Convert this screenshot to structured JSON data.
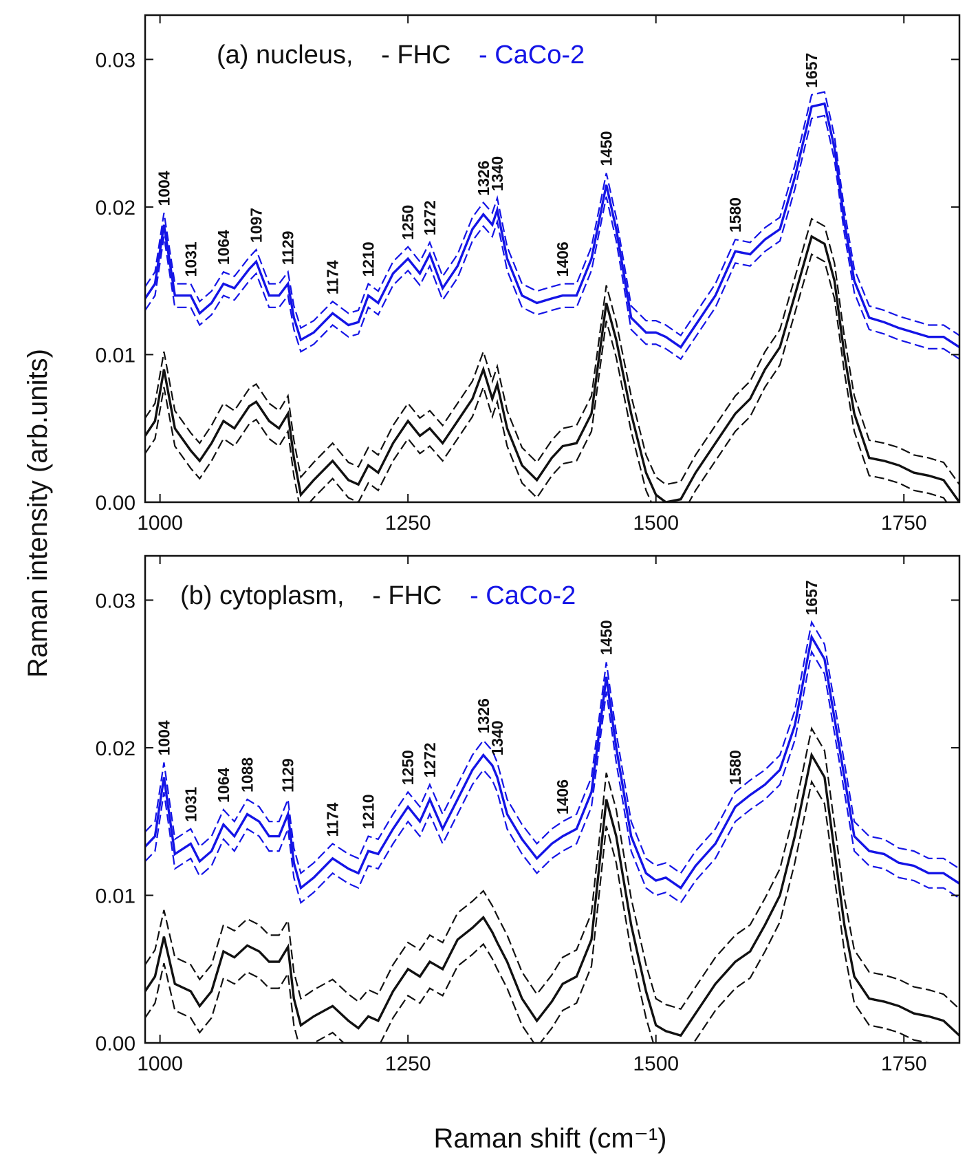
{
  "colors": {
    "FHC": "#111111",
    "CaCo-2": "#1414e6",
    "frame": "#111111"
  },
  "chart_data": [
    {
      "type": "line",
      "id": "panel-a",
      "annotation": {
        "text": "(a) nucleus,",
        "entries": [
          {
            "text": "- FHC",
            "series": "FHC"
          },
          {
            "text": "- CaCo-2",
            "series": "CaCo-2"
          }
        ]
      },
      "xlabel": "",
      "ylabel": "Raman intensity (arb.units)",
      "xlim": [
        985,
        1806
      ],
      "ylim": [
        0,
        0.033
      ],
      "xticks": [
        "1000",
        "1250",
        "1500",
        "1750"
      ],
      "yticks": [
        "0.00",
        "0.01",
        "0.02",
        "0.03"
      ],
      "peak_labels": [
        "1004",
        "1031",
        "1064",
        "1097",
        "1129",
        "1174",
        "1210",
        "1250",
        "1272",
        "1326",
        "1340",
        "1406",
        "1450",
        "1580",
        "1657"
      ],
      "series": [
        {
          "name": "CaCo-2",
          "band": 0.0008,
          "x": [
            985,
            995,
            1004,
            1015,
            1031,
            1040,
            1052,
            1064,
            1075,
            1090,
            1097,
            1110,
            1120,
            1129,
            1135,
            1142,
            1155,
            1174,
            1190,
            1200,
            1210,
            1220,
            1235,
            1250,
            1262,
            1272,
            1285,
            1300,
            1315,
            1326,
            1335,
            1340,
            1350,
            1365,
            1380,
            1395,
            1406,
            1420,
            1435,
            1450,
            1460,
            1475,
            1490,
            1500,
            1510,
            1525,
            1540,
            1560,
            1580,
            1595,
            1610,
            1625,
            1640,
            1657,
            1670,
            1680,
            1690,
            1700,
            1715,
            1730,
            1745,
            1760,
            1775,
            1790,
            1806
          ],
          "y": [
            0.0138,
            0.0148,
            0.0188,
            0.014,
            0.014,
            0.0128,
            0.0135,
            0.0148,
            0.0145,
            0.0158,
            0.0163,
            0.014,
            0.014,
            0.0148,
            0.0125,
            0.011,
            0.0115,
            0.0128,
            0.012,
            0.0122,
            0.014,
            0.0135,
            0.0155,
            0.0165,
            0.0155,
            0.0168,
            0.0145,
            0.016,
            0.0185,
            0.0195,
            0.0188,
            0.0198,
            0.0165,
            0.014,
            0.0135,
            0.0138,
            0.014,
            0.014,
            0.0165,
            0.0215,
            0.0185,
            0.0125,
            0.0115,
            0.0115,
            0.0112,
            0.0105,
            0.012,
            0.014,
            0.017,
            0.0168,
            0.0178,
            0.0185,
            0.022,
            0.0268,
            0.027,
            0.024,
            0.019,
            0.015,
            0.0125,
            0.0122,
            0.0118,
            0.0115,
            0.0112,
            0.0112,
            0.0105
          ]
        },
        {
          "name": "FHC",
          "band": 0.0012,
          "x": [
            985,
            995,
            1004,
            1015,
            1031,
            1040,
            1052,
            1064,
            1075,
            1090,
            1097,
            1110,
            1120,
            1129,
            1135,
            1142,
            1155,
            1174,
            1190,
            1200,
            1210,
            1220,
            1235,
            1250,
            1262,
            1272,
            1285,
            1300,
            1315,
            1326,
            1335,
            1340,
            1350,
            1365,
            1380,
            1395,
            1406,
            1420,
            1435,
            1450,
            1460,
            1475,
            1490,
            1500,
            1510,
            1525,
            1540,
            1560,
            1580,
            1595,
            1610,
            1625,
            1640,
            1657,
            1670,
            1680,
            1690,
            1700,
            1715,
            1730,
            1745,
            1760,
            1775,
            1790,
            1806
          ],
          "y": [
            0.0045,
            0.0055,
            0.009,
            0.005,
            0.0035,
            0.0028,
            0.004,
            0.0055,
            0.005,
            0.0065,
            0.0068,
            0.0055,
            0.005,
            0.006,
            0.003,
            0.0005,
            0.0015,
            0.0028,
            0.0015,
            0.0012,
            0.0025,
            0.002,
            0.004,
            0.0055,
            0.0045,
            0.005,
            0.004,
            0.0055,
            0.007,
            0.009,
            0.007,
            0.008,
            0.005,
            0.0025,
            0.0015,
            0.003,
            0.0038,
            0.004,
            0.006,
            0.0135,
            0.011,
            0.006,
            0.002,
            0.0005,
            0.0,
            0.0002,
            0.002,
            0.004,
            0.006,
            0.007,
            0.009,
            0.0105,
            0.014,
            0.018,
            0.0175,
            0.015,
            0.01,
            0.006,
            0.003,
            0.0028,
            0.0025,
            0.002,
            0.0018,
            0.0015,
            0.0
          ]
        }
      ]
    },
    {
      "type": "line",
      "id": "panel-b",
      "annotation": {
        "text": "(b) cytoplasm,",
        "entries": [
          {
            "text": "- FHC",
            "series": "FHC"
          },
          {
            "text": "- CaCo-2",
            "series": "CaCo-2"
          }
        ]
      },
      "xlabel": "Raman shift (cm⁻¹)",
      "ylabel": "",
      "xlim": [
        985,
        1806
      ],
      "ylim": [
        0,
        0.033
      ],
      "xticks": [
        "1000",
        "1250",
        "1500",
        "1750"
      ],
      "yticks": [
        "0.00",
        "0.01",
        "0.02",
        "0.03"
      ],
      "peak_labels": [
        "1004",
        "1031",
        "1064",
        "1088",
        "1129",
        "1174",
        "1210",
        "1250",
        "1272",
        "1326",
        "1340",
        "1406",
        "1450",
        "1580",
        "1657"
      ],
      "series": [
        {
          "name": "CaCo-2",
          "band": 0.001,
          "x": [
            985,
            995,
            1004,
            1015,
            1031,
            1040,
            1052,
            1064,
            1075,
            1088,
            1100,
            1110,
            1120,
            1129,
            1135,
            1142,
            1155,
            1174,
            1190,
            1200,
            1210,
            1220,
            1235,
            1250,
            1262,
            1272,
            1285,
            1300,
            1315,
            1326,
            1335,
            1340,
            1350,
            1365,
            1380,
            1395,
            1406,
            1420,
            1435,
            1450,
            1460,
            1475,
            1490,
            1500,
            1510,
            1525,
            1540,
            1560,
            1580,
            1595,
            1610,
            1625,
            1640,
            1657,
            1670,
            1680,
            1690,
            1700,
            1715,
            1730,
            1745,
            1760,
            1775,
            1790,
            1806
          ],
          "y": [
            0.0133,
            0.014,
            0.018,
            0.0128,
            0.0135,
            0.0123,
            0.013,
            0.0148,
            0.014,
            0.0155,
            0.015,
            0.014,
            0.014,
            0.0155,
            0.0122,
            0.0105,
            0.0112,
            0.0125,
            0.0118,
            0.0115,
            0.013,
            0.0128,
            0.0145,
            0.016,
            0.015,
            0.0165,
            0.0145,
            0.0165,
            0.0185,
            0.0195,
            0.0188,
            0.018,
            0.0155,
            0.0138,
            0.0125,
            0.0135,
            0.014,
            0.0145,
            0.017,
            0.0248,
            0.02,
            0.014,
            0.0115,
            0.011,
            0.0112,
            0.0105,
            0.012,
            0.0135,
            0.016,
            0.0168,
            0.0175,
            0.0185,
            0.0215,
            0.0275,
            0.026,
            0.022,
            0.018,
            0.014,
            0.013,
            0.0128,
            0.0122,
            0.012,
            0.0115,
            0.0115,
            0.0108
          ]
        },
        {
          "name": "FHC",
          "band": 0.0018,
          "x": [
            985,
            995,
            1004,
            1015,
            1031,
            1040,
            1052,
            1064,
            1075,
            1088,
            1100,
            1110,
            1120,
            1129,
            1135,
            1142,
            1155,
            1174,
            1190,
            1200,
            1210,
            1220,
            1235,
            1250,
            1262,
            1272,
            1285,
            1300,
            1315,
            1326,
            1335,
            1340,
            1350,
            1365,
            1380,
            1395,
            1406,
            1420,
            1435,
            1450,
            1460,
            1475,
            1490,
            1500,
            1510,
            1525,
            1540,
            1560,
            1580,
            1595,
            1610,
            1625,
            1640,
            1657,
            1670,
            1680,
            1690,
            1700,
            1715,
            1730,
            1745,
            1760,
            1775,
            1790,
            1806
          ],
          "y": [
            0.0035,
            0.0045,
            0.0072,
            0.004,
            0.0035,
            0.0025,
            0.0035,
            0.0062,
            0.0058,
            0.0066,
            0.0062,
            0.0055,
            0.0055,
            0.0065,
            0.003,
            0.0012,
            0.0018,
            0.0025,
            0.0015,
            0.001,
            0.0018,
            0.0015,
            0.0035,
            0.005,
            0.0045,
            0.0055,
            0.005,
            0.007,
            0.0078,
            0.0085,
            0.0075,
            0.0068,
            0.0055,
            0.003,
            0.0015,
            0.0028,
            0.004,
            0.0045,
            0.007,
            0.0165,
            0.014,
            0.008,
            0.0035,
            0.0012,
            0.0008,
            0.0005,
            0.002,
            0.004,
            0.0055,
            0.0062,
            0.008,
            0.01,
            0.014,
            0.0195,
            0.018,
            0.013,
            0.008,
            0.0045,
            0.003,
            0.0028,
            0.0025,
            0.002,
            0.0018,
            0.0015,
            0.0005
          ]
        }
      ]
    }
  ]
}
